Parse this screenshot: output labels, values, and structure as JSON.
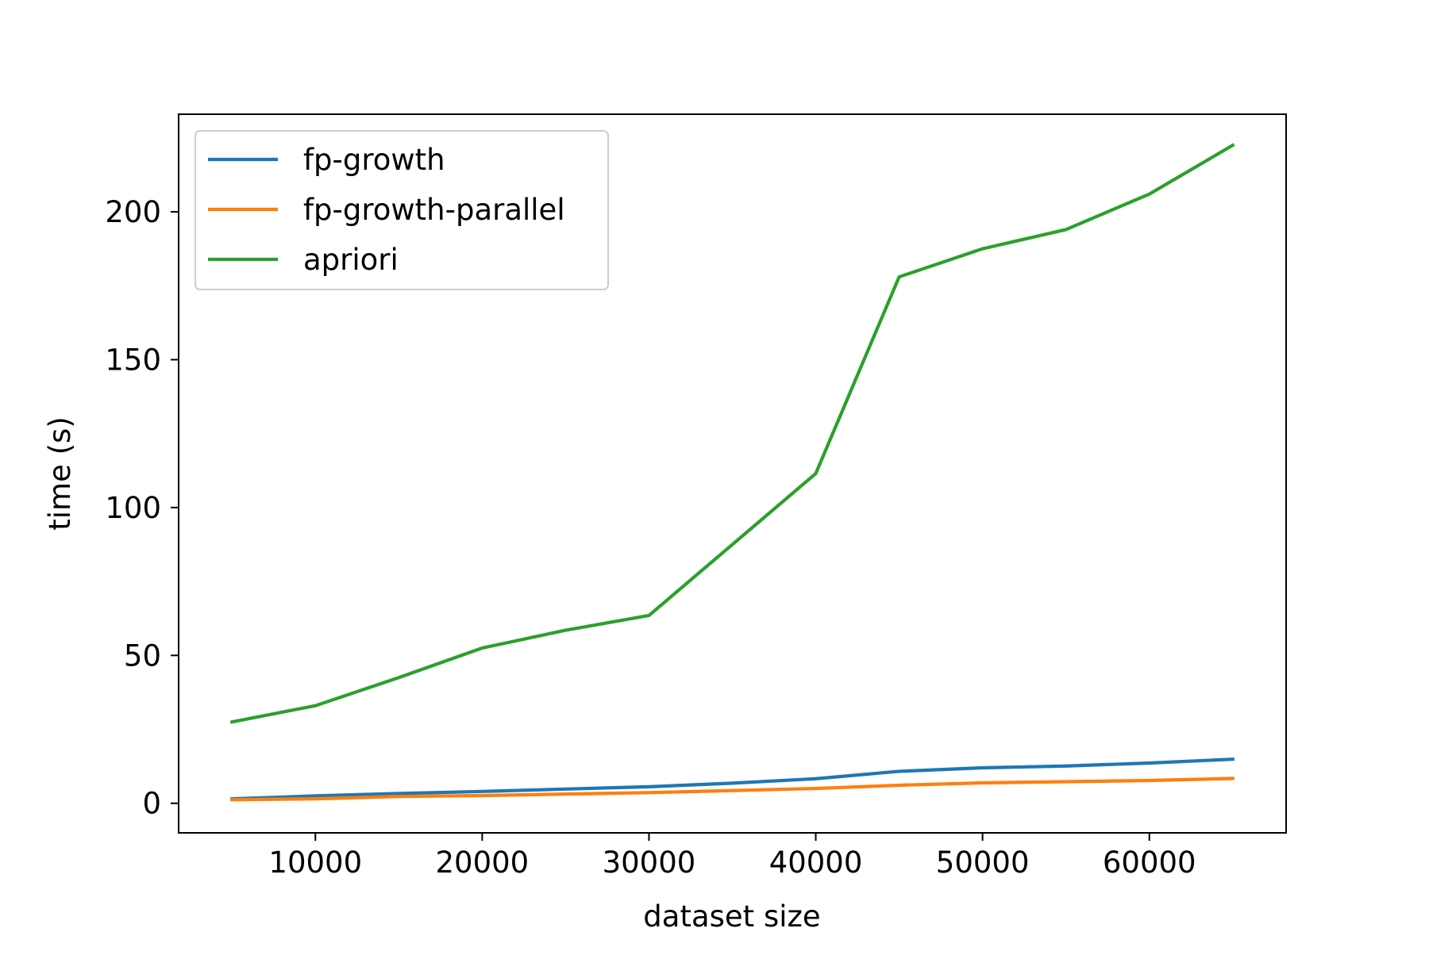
{
  "chart_data": {
    "type": "line",
    "title": "",
    "xlabel": "dataset size",
    "ylabel": "time (s)",
    "xlim": [
      1800,
      68200
    ],
    "ylim": [
      -10,
      233
    ],
    "xticks": [
      10000,
      20000,
      30000,
      40000,
      50000,
      60000
    ],
    "xtick_labels": [
      "10000",
      "20000",
      "30000",
      "40000",
      "50000",
      "60000"
    ],
    "yticks": [
      0,
      50,
      100,
      150,
      200
    ],
    "ytick_labels": [
      "0",
      "50",
      "100",
      "150",
      "200"
    ],
    "grid": false,
    "legend_position": "top-left",
    "x": [
      5000,
      10000,
      15000,
      20000,
      25000,
      30000,
      35000,
      40000,
      45000,
      50000,
      55000,
      60000,
      65000
    ],
    "series": [
      {
        "name": "fp-growth",
        "color": "#1f77b4",
        "values": [
          1.5,
          2.5,
          3.3,
          4.0,
          4.8,
          5.6,
          6.8,
          8.3,
          10.8,
          12.0,
          12.6,
          13.6,
          14.9
        ]
      },
      {
        "name": "fp-growth-parallel",
        "color": "#ff7f0e",
        "values": [
          1.2,
          1.5,
          2.3,
          2.6,
          3.1,
          3.6,
          4.3,
          5.0,
          6.1,
          6.9,
          7.3,
          7.7,
          8.4
        ]
      },
      {
        "name": "apriori",
        "color": "#2ca02c",
        "values": [
          27.5,
          33.0,
          42.5,
          52.5,
          58.5,
          63.5,
          87.5,
          111.5,
          178.0,
          187.5,
          194.0,
          206.0,
          222.5
        ]
      }
    ]
  }
}
